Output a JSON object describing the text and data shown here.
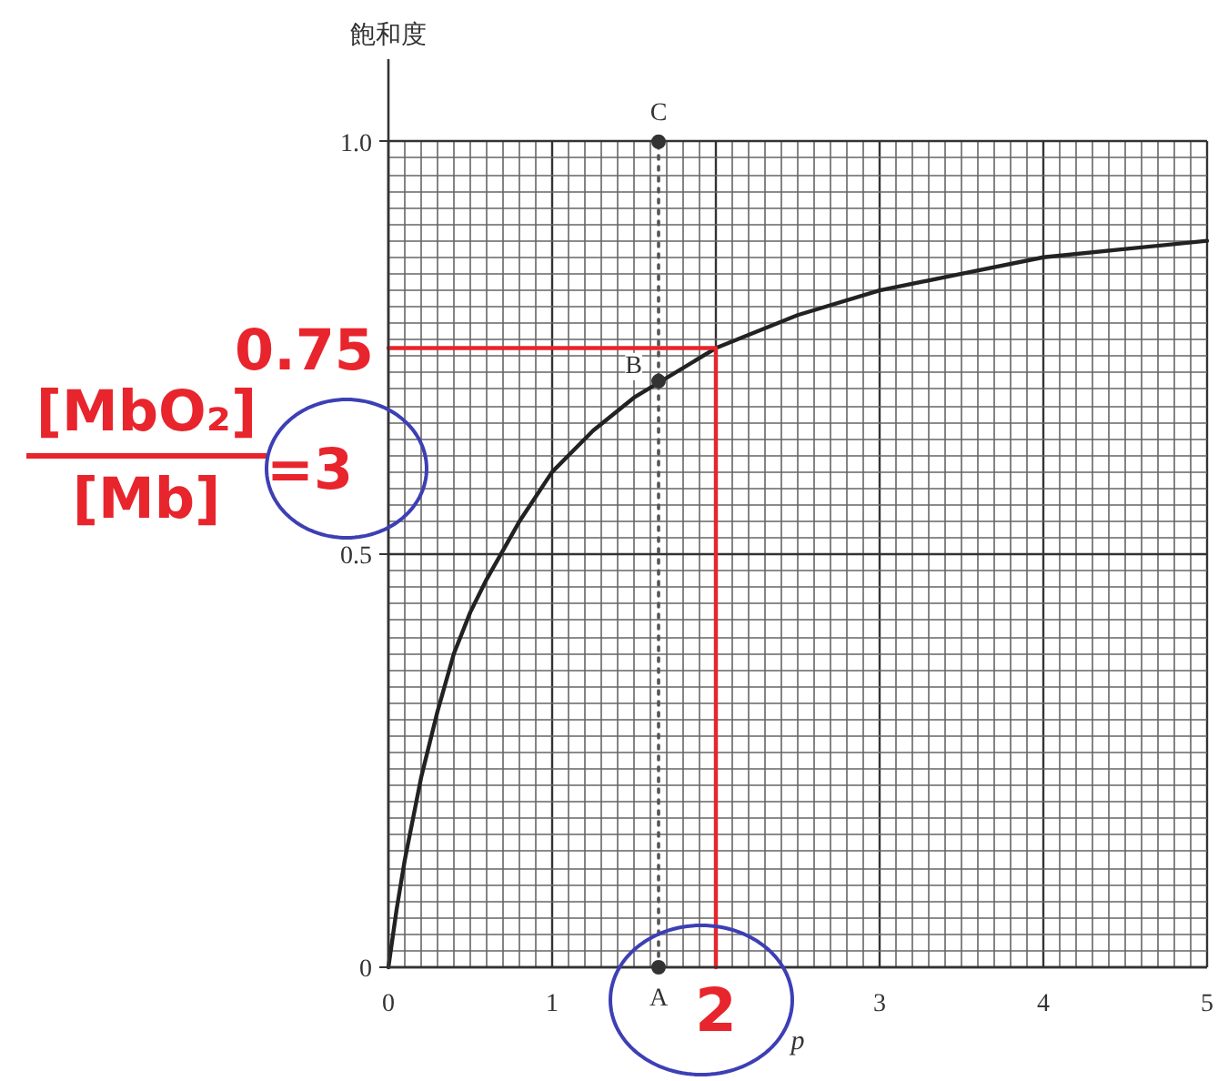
{
  "chart_data": {
    "type": "line",
    "xlabel": "p",
    "ylabel": "飽和度",
    "xlim": [
      0,
      5
    ],
    "xticks": [
      0,
      1,
      {
        "value": 2,
        "label": null
      },
      3,
      4,
      5
    ],
    "ylim": [
      0,
      1.1
    ],
    "yticks": [
      0,
      0.5,
      {
        "value": 1,
        "label": "1.0"
      }
    ],
    "grid": true,
    "series": [
      {
        "color": "#222222",
        "marker": "none",
        "line_style": "solid",
        "x": [
          0,
          0.05,
          0.1,
          0.2,
          0.3,
          0.4,
          0.5,
          0.6,
          0.8,
          1,
          1.25,
          1.5,
          2,
          2.5,
          3,
          3.5,
          4,
          4.5,
          5
        ],
        "values": [
          0,
          0.07,
          0.13,
          0.23,
          0.31,
          0.38,
          0.43,
          0.47,
          0.54,
          0.6,
          0.65,
          0.69,
          0.75,
          0.79,
          0.82,
          0.84,
          0.86,
          0.87,
          0.88
        ]
      },
      {
        "color": "#555555",
        "marker": "none",
        "line_style": "dotted",
        "x": [
          1.65,
          1.65
        ],
        "values": [
          0,
          1
        ]
      },
      {
        "color": "#e8242c",
        "marker": "none",
        "line_style": "solid",
        "x": [
          0,
          2,
          2
        ],
        "values": [
          0.75,
          0.75,
          0
        ]
      },
      {
        "type": "scatter",
        "color": "#333333",
        "marker": "circle",
        "x": [
          1.65,
          1.65,
          1.65
        ],
        "values": [
          0,
          0.71,
          1
        ]
      }
    ],
    "annotations": [
      {
        "text": "A",
        "x": 1.65,
        "y": 0
      },
      {
        "text": "B",
        "x": 1.65,
        "y": 0.71
      },
      {
        "text": "C",
        "x": 1.65,
        "y": 1
      },
      {
        "text": "0.75",
        "x": 0,
        "y": 0.75
      },
      {
        "text": "2",
        "x": 2,
        "y": 0
      },
      "[MbO₂]",
      "[Mb]",
      "=3"
    ]
  }
}
